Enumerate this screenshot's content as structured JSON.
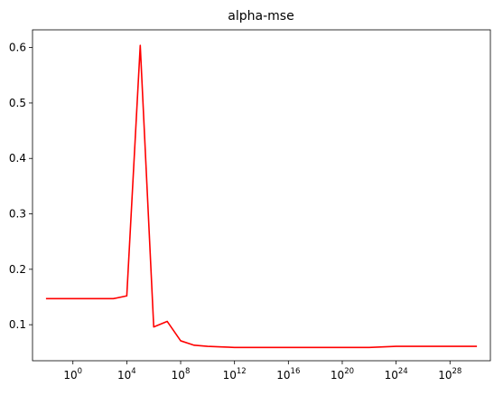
{
  "chart_data": {
    "type": "line",
    "title": "alpha-mse",
    "xlabel": "",
    "ylabel": "",
    "x_scale": "log",
    "xlim": [
      0.001,
      1e+31
    ],
    "ylim": [
      0.035,
      0.632
    ],
    "grid": false,
    "x_ticks": [
      {
        "value": 1,
        "base": "10",
        "exp": "0"
      },
      {
        "value": 10000.0,
        "base": "10",
        "exp": "4"
      },
      {
        "value": 100000000.0,
        "base": "10",
        "exp": "8"
      },
      {
        "value": 1000000000000.0,
        "base": "10",
        "exp": "12"
      },
      {
        "value": 1e+16,
        "base": "10",
        "exp": "16"
      },
      {
        "value": 1e+20,
        "base": "10",
        "exp": "20"
      },
      {
        "value": 1e+24,
        "base": "10",
        "exp": "24"
      },
      {
        "value": 1e+28,
        "base": "10",
        "exp": "28"
      }
    ],
    "y_ticks": [
      {
        "value": 0.1,
        "label": "0.1"
      },
      {
        "value": 0.2,
        "label": "0.2"
      },
      {
        "value": 0.3,
        "label": "0.3"
      },
      {
        "value": 0.4,
        "label": "0.4"
      },
      {
        "value": 0.5,
        "label": "0.5"
      },
      {
        "value": 0.6,
        "label": "0.6"
      }
    ],
    "series": [
      {
        "color": "#ff0000",
        "x": [
          0.01,
          0.1,
          1,
          10.0,
          100.0,
          1000.0,
          10000.0,
          100000.0,
          1000000.0,
          10000000.0,
          100000000.0,
          1000000000.0,
          10000000000.0,
          100000000000.0,
          1000000000000.0,
          10000000000000.0,
          100000000000000.0,
          1000000000000000.0,
          1e+16,
          1e+17,
          1e+18,
          1e+19,
          1e+20,
          1e+21,
          1e+22,
          1e+23,
          1e+24,
          1e+25,
          1e+26,
          1e+27,
          1e+28,
          1e+29,
          1e+30
        ],
        "y": [
          0.147,
          0.147,
          0.147,
          0.147,
          0.147,
          0.147,
          0.152,
          0.604,
          0.096,
          0.106,
          0.071,
          0.063,
          0.061,
          0.06,
          0.059,
          0.059,
          0.059,
          0.059,
          0.059,
          0.059,
          0.059,
          0.059,
          0.059,
          0.059,
          0.059,
          0.06,
          0.061,
          0.061,
          0.061,
          0.061,
          0.061,
          0.061,
          0.061
        ]
      }
    ]
  }
}
